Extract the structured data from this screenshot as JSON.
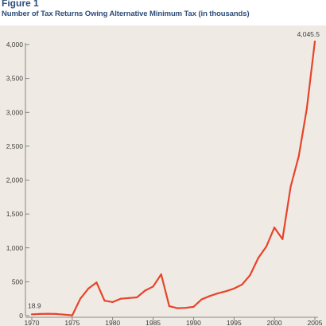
{
  "figure": {
    "label": "Figure 1",
    "title": "Number of Tax Returns Owing Alternative Minimum Tax (in thousands)"
  },
  "chart_data": {
    "type": "line",
    "title": "Number of Tax Returns Owing Alternative Minimum Tax (in thousands)",
    "xlabel": "",
    "ylabel": "",
    "xlim": [
      1970,
      2005
    ],
    "ylim": [
      0,
      4000
    ],
    "x_ticks": [
      1970,
      1975,
      1980,
      1985,
      1990,
      1995,
      2000,
      2005
    ],
    "y_ticks": [
      0,
      500,
      1000,
      1500,
      2000,
      2500,
      3000,
      3500,
      4000
    ],
    "y_tick_labels": [
      "0",
      "500",
      "1,000",
      "1,500",
      "2,000",
      "2,500",
      "3,000",
      "3,500",
      "4,000"
    ],
    "grid": false,
    "line_color": "#e8432a",
    "series": [
      {
        "x": [
          1970,
          1971,
          1972,
          1973,
          1974,
          1975,
          1976,
          1977,
          1978,
          1979,
          1980,
          1981,
          1982,
          1983,
          1984,
          1985,
          1986,
          1987,
          1988,
          1989,
          1990,
          1991,
          1992,
          1993,
          1994,
          1995,
          1996,
          1997,
          1998,
          1999,
          2000,
          2001,
          2002,
          2003,
          2004,
          2005
        ],
        "values": [
          18.9,
          25,
          28,
          25,
          15,
          5,
          250,
          400,
          490,
          220,
          200,
          250,
          260,
          270,
          370,
          430,
          610,
          140,
          110,
          115,
          130,
          240,
          290,
          330,
          360,
          400,
          460,
          600,
          850,
          1020,
          1300,
          1130,
          1900,
          2350,
          3050,
          4045.5
        ]
      }
    ],
    "annotations": [
      {
        "x": 1970,
        "y": 18.9,
        "text": "18.9"
      },
      {
        "x": 2005,
        "y": 4045.5,
        "text": "4,045.5"
      }
    ]
  }
}
